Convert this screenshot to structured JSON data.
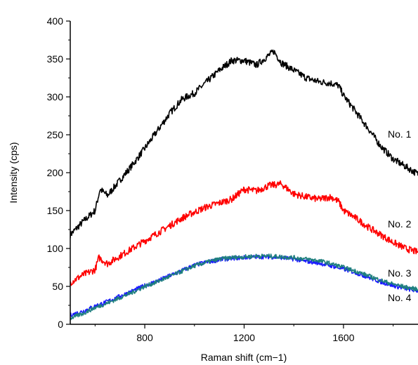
{
  "chart_data": {
    "type": "line",
    "xlabel": "Raman shift (cm−1)",
    "ylabel": "Intensity (cps)",
    "xlim": [
      500,
      1900
    ],
    "ylim": [
      0,
      400
    ],
    "x_ticks": [
      800,
      1200,
      1600
    ],
    "y_ticks": [
      0,
      50,
      100,
      150,
      200,
      250,
      300,
      350,
      400
    ],
    "x_tick_labels": [
      "800",
      "1200",
      "1600"
    ],
    "y_tick_labels": [
      "0",
      "50",
      "100",
      "150",
      "200",
      "250",
      "300",
      "350",
      "400"
    ],
    "grid": false,
    "legend": "none",
    "series": [
      {
        "name": "No. 1",
        "color": "#000000",
        "x": [
          500,
          550,
          600,
          620,
          650,
          700,
          750,
          800,
          850,
          900,
          950,
          1000,
          1050,
          1100,
          1150,
          1200,
          1250,
          1300,
          1320,
          1350,
          1400,
          1450,
          1500,
          1550,
          1580,
          1600,
          1650,
          1700,
          1750,
          1800,
          1850,
          1900
        ],
        "y": [
          118,
          135,
          150,
          178,
          170,
          190,
          210,
          232,
          255,
          278,
          297,
          305,
          320,
          335,
          348,
          348,
          342,
          355,
          360,
          345,
          335,
          325,
          320,
          318,
          315,
          302,
          280,
          258,
          235,
          218,
          208,
          198
        ]
      },
      {
        "name": "No. 2",
        "color": "#ff0000",
        "x": [
          500,
          550,
          600,
          615,
          650,
          700,
          750,
          800,
          850,
          900,
          950,
          1000,
          1050,
          1100,
          1150,
          1200,
          1250,
          1300,
          1350,
          1400,
          1450,
          1500,
          1550,
          1580,
          1600,
          1650,
          1700,
          1750,
          1800,
          1850,
          1900
        ],
        "y": [
          55,
          65,
          72,
          88,
          80,
          90,
          100,
          110,
          120,
          130,
          140,
          148,
          155,
          160,
          165,
          178,
          176,
          183,
          185,
          172,
          168,
          165,
          168,
          162,
          150,
          140,
          128,
          118,
          108,
          100,
          95
        ]
      },
      {
        "name": "No. 3",
        "color": "#1f7f7f",
        "x": [
          500,
          550,
          600,
          650,
          700,
          750,
          800,
          850,
          900,
          950,
          1000,
          1050,
          1100,
          1150,
          1200,
          1250,
          1300,
          1350,
          1400,
          1450,
          1500,
          1550,
          1600,
          1650,
          1700,
          1750,
          1800,
          1850,
          1900
        ],
        "y": [
          8,
          14,
          22,
          28,
          35,
          42,
          50,
          56,
          63,
          70,
          77,
          82,
          86,
          88,
          89,
          90,
          90,
          89,
          88,
          86,
          84,
          80,
          75,
          70,
          64,
          58,
          53,
          49,
          46
        ]
      },
      {
        "name": "No. 4",
        "color": "#1a1aff",
        "x": [
          500,
          550,
          600,
          650,
          700,
          750,
          800,
          850,
          900,
          950,
          1000,
          1050,
          1100,
          1150,
          1200,
          1250,
          1300,
          1350,
          1400,
          1450,
          1500,
          1550,
          1600,
          1650,
          1700,
          1750,
          1800,
          1850,
          1900
        ],
        "y": [
          12,
          17,
          24,
          30,
          37,
          44,
          51,
          57,
          64,
          71,
          78,
          82,
          85,
          87,
          88,
          89,
          89,
          88,
          86,
          83,
          81,
          77,
          73,
          68,
          62,
          56,
          51,
          47,
          44
        ]
      }
    ],
    "annotations": [
      {
        "text": "No. 1",
        "series": "No. 1"
      },
      {
        "text": "No. 2",
        "series": "No. 2"
      },
      {
        "text": "No. 3",
        "series": "No. 3"
      },
      {
        "text": "No. 4",
        "series": "No. 4"
      }
    ]
  }
}
